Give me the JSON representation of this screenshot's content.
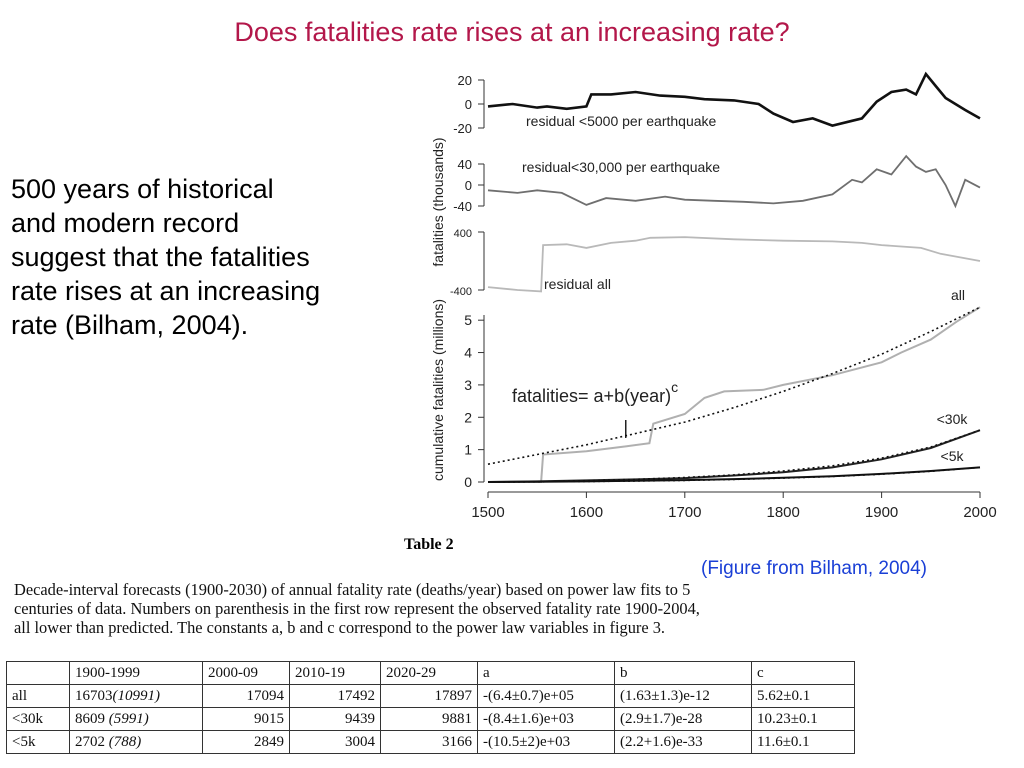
{
  "title": "Does fatalities rate rises at an increasing rate?",
  "body_lines": [
    "500 years of historical",
    "and modern record",
    "suggest that the fatalities",
    "rate rises at an increasing",
    "rate (Bilham, 2004)."
  ],
  "figure_credit": "(Figure from Bilham, 2004)",
  "colors": {
    "title": "#b3174a",
    "credit": "#1a3fd6"
  },
  "chart_data": {
    "type": "line",
    "x_axis": {
      "ticks": [
        1500,
        1600,
        1700,
        1800,
        1900,
        2000
      ],
      "range": [
        1500,
        2000
      ]
    },
    "upper_ylabel": "fatalities (thousands)",
    "lower_ylabel": "cumulative fatalities (millions)",
    "panels": [
      {
        "label": "residual <5000 per earthquake",
        "yticks": [
          "20",
          "0",
          "-20"
        ],
        "range": [
          -20,
          20
        ],
        "style": "thick-black",
        "x": [
          1500,
          1525,
          1550,
          1560,
          1580,
          1600,
          1605,
          1625,
          1650,
          1675,
          1700,
          1720,
          1750,
          1775,
          1790,
          1810,
          1830,
          1850,
          1870,
          1880,
          1895,
          1910,
          1925,
          1935,
          1945,
          1955,
          1965,
          1975,
          1985,
          2000
        ],
        "y": [
          -2,
          0,
          -3,
          -2,
          -4,
          -2,
          8,
          8,
          10,
          7,
          6,
          4,
          3,
          0,
          -8,
          -15,
          -12,
          -18,
          -14,
          -12,
          2,
          10,
          12,
          8,
          25,
          15,
          5,
          0,
          -5,
          -12
        ]
      },
      {
        "label": "residual<30,000 per earthquake",
        "yticks": [
          "40",
          "0",
          "-40"
        ],
        "range": [
          -40,
          40
        ],
        "style": "medium-gray",
        "x": [
          1500,
          1530,
          1550,
          1575,
          1600,
          1620,
          1650,
          1680,
          1700,
          1730,
          1760,
          1790,
          1820,
          1850,
          1870,
          1880,
          1895,
          1910,
          1925,
          1935,
          1945,
          1955,
          1965,
          1975,
          1985,
          2000
        ],
        "y": [
          -10,
          -15,
          -10,
          -15,
          -38,
          -25,
          -30,
          -22,
          -28,
          -30,
          -32,
          -35,
          -30,
          -18,
          10,
          5,
          30,
          20,
          55,
          35,
          25,
          30,
          0,
          -40,
          10,
          -5
        ]
      },
      {
        "label": "residual all",
        "yticks": [
          "400",
          "-400"
        ],
        "range": [
          -400,
          400
        ],
        "style": "light-gray",
        "x": [
          1500,
          1530,
          1554,
          1556,
          1580,
          1600,
          1625,
          1650,
          1665,
          1700,
          1750,
          1800,
          1850,
          1880,
          1900,
          1920,
          1940,
          1960,
          1980,
          2000
        ],
        "y": [
          -360,
          -400,
          -420,
          220,
          230,
          180,
          250,
          280,
          320,
          330,
          300,
          280,
          270,
          250,
          220,
          200,
          180,
          100,
          50,
          0
        ]
      }
    ],
    "lower_panel": {
      "yticks": [
        0,
        1,
        2,
        3,
        4,
        5
      ],
      "range": [
        0,
        5.5
      ],
      "equation_label": "fatalities= a+b(year)",
      "equation_exponent": "c",
      "series": [
        {
          "name": "all",
          "observed": {
            "x": [
              1500,
              1554,
              1556,
              1600,
              1640,
              1664,
              1668,
              1700,
              1720,
              1740,
              1780,
              1800,
              1850,
              1900,
              1920,
              1950,
              1976,
              2000
            ],
            "y": [
              0,
              0,
              0.85,
              0.95,
              1.1,
              1.2,
              1.8,
              2.1,
              2.6,
              2.8,
              2.85,
              3.0,
              3.3,
              3.7,
              4.0,
              4.4,
              4.95,
              5.4
            ]
          },
          "fit": {
            "x": [
              1500,
              1550,
              1600,
              1650,
              1700,
              1750,
              1800,
              1850,
              1900,
              1950,
              2000
            ],
            "y": [
              0.55,
              0.85,
              1.15,
              1.5,
              1.85,
              2.3,
              2.8,
              3.35,
              3.95,
              4.65,
              5.4
            ]
          }
        },
        {
          "name": "<30k",
          "observed": {
            "x": [
              1500,
              1550,
              1600,
              1650,
              1700,
              1750,
              1800,
              1850,
              1900,
              1950,
              2000
            ],
            "y": [
              0,
              0.02,
              0.05,
              0.08,
              0.12,
              0.2,
              0.3,
              0.45,
              0.7,
              1.05,
              1.6
            ]
          },
          "fit": {
            "x": [
              1500,
              1550,
              1600,
              1650,
              1700,
              1750,
              1800,
              1850,
              1900,
              1950,
              2000
            ],
            "y": [
              0,
              0.01,
              0.04,
              0.08,
              0.14,
              0.22,
              0.34,
              0.5,
              0.74,
              1.08,
              1.6
            ]
          }
        },
        {
          "name": "<5k",
          "observed": {
            "x": [
              1500,
              1550,
              1600,
              1650,
              1700,
              1750,
              1800,
              1850,
              1900,
              1950,
              2000
            ],
            "y": [
              0,
              0.01,
              0.02,
              0.04,
              0.06,
              0.09,
              0.13,
              0.18,
              0.25,
              0.34,
              0.45
            ]
          },
          "fit": {
            "x": [
              1500,
              1550,
              1600,
              1650,
              1700,
              1750,
              1800,
              1850,
              1900,
              1950,
              2000
            ],
            "y": [
              0,
              0.005,
              0.015,
              0.03,
              0.05,
              0.08,
              0.12,
              0.17,
              0.24,
              0.33,
              0.45
            ]
          }
        }
      ]
    }
  },
  "table": {
    "title": "Table 2",
    "caption_lines": [
      "Decade-interval forecasts (1900-2030) of annual fatality rate (deaths/year) based on power law fits to 5",
      "centuries of data.  Numbers on parenthesis in the first row represent the observed fatality rate 1900-2004,",
      "all lower than predicted. The constants a, b and c correspond to the power law variables in figure 3."
    ],
    "headers": [
      "",
      "1900-1999",
      "2000-09",
      "2010-19",
      "2020-29",
      "a",
      "b",
      "c"
    ],
    "rows": [
      {
        "label": "all",
        "value": "16703",
        "observed": "(10991)",
        "d2000": "17094",
        "d2010": "17492",
        "d2020": "17897",
        "a": "-(6.4±0.7)e+05",
        "b": "(1.63±1.3)e-12",
        "c": "5.62±0.1"
      },
      {
        "label": "<30k",
        "value": "8609",
        "observed": "(5991)",
        "d2000": "9015",
        "d2010": "9439",
        "d2020": "9881",
        "a": "-(8.4±1.6)e+03",
        "b": "(2.9±1.7)e-28",
        "c": "10.23±0.1"
      },
      {
        "label": "<5k",
        "value": "2702",
        "observed": "(788)",
        "d2000": "2849",
        "d2010": "3004",
        "d2020": "3166",
        "a": "-(10.5±2)e+03",
        "b": "(2.2+1.6)e-33",
        "c": "11.6±0.1"
      }
    ]
  }
}
